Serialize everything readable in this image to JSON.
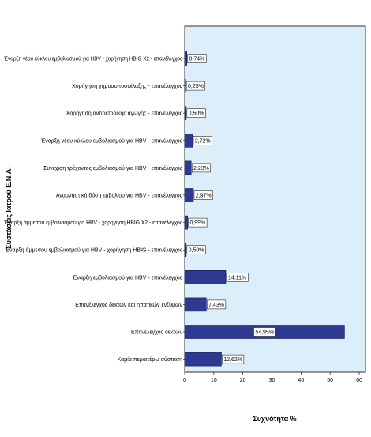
{
  "chart_data": {
    "type": "bar",
    "orientation": "horizontal",
    "xlabel": "Συχνότητα %",
    "ylabel": "Συστάσεις Ιατρού Ε.Ν.Α.",
    "xlim": [
      0,
      60
    ],
    "xticks": [
      "0",
      "10",
      "20",
      "30",
      "40",
      "50",
      "60"
    ],
    "grid": false,
    "categories": [
      "Έναρξη νέου κύκλου εμβολιασμού για HBV - χορήγηση HBIG X2 - επανέλεγχος",
      "Χορήγηση γημοσοποσφίλαξης - επανέλεγχος",
      "Χορήγηση αντιρετροϊκής αγωγής - επανέλεγχος",
      "Έναρξη νέου κύκλου εμβολιασμού για HBV - επανέλεγχος",
      "Συνέχιση τρέχοντος εμβολιασμού για HBV - επανέλεγχος",
      "Αναμνηστική δόση εμβολίου για HBV - επανέλεγχος",
      "Έναρξη άμμεσου εμβολιασμού για HBV - χορήγηση HBIG X2 - επανέλεγχος",
      "Έναρξη άμμεσου εμβολιασμού για HBV - χορήγηση HBIG - επανέλεγχος",
      "Έναρξη εμβολιασμού για HBV - επανέλεγχος",
      "Επανέλεγχος δεκτών και ηπατικών ενζύμων",
      "Επανέλεγχος δεκτών",
      "Καμία περαιτέρω σύσταση"
    ],
    "values": [
      0.74,
      0.25,
      0.5,
      2.72,
      2.23,
      2.97,
      0.99,
      0.5,
      14.11,
      7.43,
      54.95,
      12.62
    ],
    "labels": [
      "0,74%",
      "0,25%",
      "0,50%",
      "2,72%",
      "2,23%",
      "2,97%",
      "0,99%",
      "0,50%",
      "14,11%",
      "7,43%",
      "54,95%",
      "12,62%"
    ],
    "colors": {
      "bar": "#2e3a92",
      "bar_stroke": "#101a5a",
      "plot_bg": "#ddeefb"
    }
  }
}
